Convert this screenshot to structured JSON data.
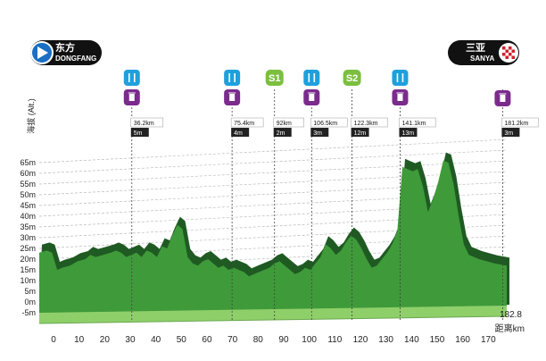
{
  "start": {
    "cn": "东方",
    "en": "DONGFANG"
  },
  "finish": {
    "cn": "三亚",
    "en": "SANYA"
  },
  "colors": {
    "profile_front": "#3f9a3a",
    "profile_dark": "#1f5a23",
    "profile_base": "#8fcf6a",
    "feed_icon": "#1fa0dd",
    "waste_icon": "#7a2b8c",
    "sprint_icon": "#7cbf3f",
    "label_dark": "#222222",
    "flag_red": "#d0202a"
  },
  "chart_data": {
    "type": "area",
    "ylabel": "海拔 (Alt.)",
    "xlabel": "距离km",
    "y_unit": "m",
    "x_end_label": "182.8",
    "yticks": [
      "-5m",
      "0m",
      "5m",
      "10m",
      "15m",
      "20m",
      "25m",
      "30m",
      "35m",
      "40m",
      "45m",
      "50m",
      "55m",
      "60m",
      "65m"
    ],
    "xticks": [
      0,
      10,
      20,
      30,
      40,
      50,
      60,
      70,
      80,
      90,
      100,
      110,
      120,
      130,
      140,
      150,
      160,
      170
    ],
    "xlim": [
      0,
      182.8
    ],
    "ylim": [
      -5,
      65
    ],
    "profile": [
      [
        0,
        23
      ],
      [
        3,
        24
      ],
      [
        5,
        23
      ],
      [
        7,
        15
      ],
      [
        9,
        16
      ],
      [
        12,
        17
      ],
      [
        15,
        19
      ],
      [
        18,
        20
      ],
      [
        20,
        22
      ],
      [
        22,
        21
      ],
      [
        25,
        22
      ],
      [
        28,
        23
      ],
      [
        30,
        24
      ],
      [
        32,
        23
      ],
      [
        34,
        21
      ],
      [
        36,
        22
      ],
      [
        38,
        23
      ],
      [
        40,
        21
      ],
      [
        42,
        24
      ],
      [
        44,
        23
      ],
      [
        46,
        21
      ],
      [
        48,
        26
      ],
      [
        50,
        25
      ],
      [
        52,
        31
      ],
      [
        54,
        36
      ],
      [
        56,
        34
      ],
      [
        58,
        21
      ],
      [
        60,
        18
      ],
      [
        62,
        17
      ],
      [
        64,
        19
      ],
      [
        66,
        20
      ],
      [
        68,
        18
      ],
      [
        70,
        16
      ],
      [
        72,
        17
      ],
      [
        74,
        15
      ],
      [
        76,
        16
      ],
      [
        78,
        15
      ],
      [
        80,
        14
      ],
      [
        82,
        12
      ],
      [
        84,
        13
      ],
      [
        86,
        14
      ],
      [
        88,
        15
      ],
      [
        90,
        16
      ],
      [
        92,
        18
      ],
      [
        94,
        19
      ],
      [
        96,
        17
      ],
      [
        98,
        15
      ],
      [
        100,
        13
      ],
      [
        102,
        14
      ],
      [
        104,
        16
      ],
      [
        106,
        15
      ],
      [
        108,
        18
      ],
      [
        110,
        21
      ],
      [
        112,
        27
      ],
      [
        114,
        25
      ],
      [
        116,
        22
      ],
      [
        118,
        24
      ],
      [
        120,
        28
      ],
      [
        122,
        31
      ],
      [
        124,
        29
      ],
      [
        126,
        25
      ],
      [
        128,
        20
      ],
      [
        130,
        16
      ],
      [
        132,
        17
      ],
      [
        134,
        20
      ],
      [
        136,
        23
      ],
      [
        138,
        27
      ],
      [
        140,
        33
      ],
      [
        141,
        48
      ],
      [
        142,
        63
      ],
      [
        144,
        62
      ],
      [
        146,
        61
      ],
      [
        148,
        62
      ],
      [
        150,
        54
      ],
      [
        152,
        42
      ],
      [
        154,
        48
      ],
      [
        156,
        56
      ],
      [
        158,
        66
      ],
      [
        160,
        65
      ],
      [
        162,
        55
      ],
      [
        164,
        40
      ],
      [
        166,
        27
      ],
      [
        168,
        22
      ],
      [
        170,
        21
      ],
      [
        172,
        20
      ],
      [
        175,
        19
      ],
      [
        178,
        18
      ],
      [
        182.8,
        17
      ]
    ]
  },
  "waypoints": [
    {
      "km": 36.2,
      "km_label": "36.2km",
      "alt_label": "5m",
      "icons": [
        "feed-icon",
        "waste-zone-icon"
      ]
    },
    {
      "km": 75.4,
      "km_label": "75.4km",
      "alt_label": "4m",
      "icons": [
        "feed-icon",
        "waste-zone-icon"
      ]
    },
    {
      "km": 92,
      "km_label": "92km",
      "alt_label": "2m",
      "icons": [
        "sprint-1-icon"
      ],
      "sprint": "S1"
    },
    {
      "km": 106.5,
      "km_label": "106.5km",
      "alt_label": "3m",
      "icons": [
        "feed-icon",
        "waste-zone-icon"
      ]
    },
    {
      "km": 122.3,
      "km_label": "122.3km",
      "alt_label": "12m",
      "icons": [
        "sprint-2-icon"
      ],
      "sprint": "S2"
    },
    {
      "km": 141.1,
      "km_label": "141.1km",
      "alt_label": "13m",
      "icons": [
        "feed-icon",
        "waste-zone-icon"
      ]
    },
    {
      "km": 181.2,
      "km_label": "181.2km",
      "alt_label": "3m",
      "icons": [
        "waste-zone-icon"
      ]
    }
  ]
}
